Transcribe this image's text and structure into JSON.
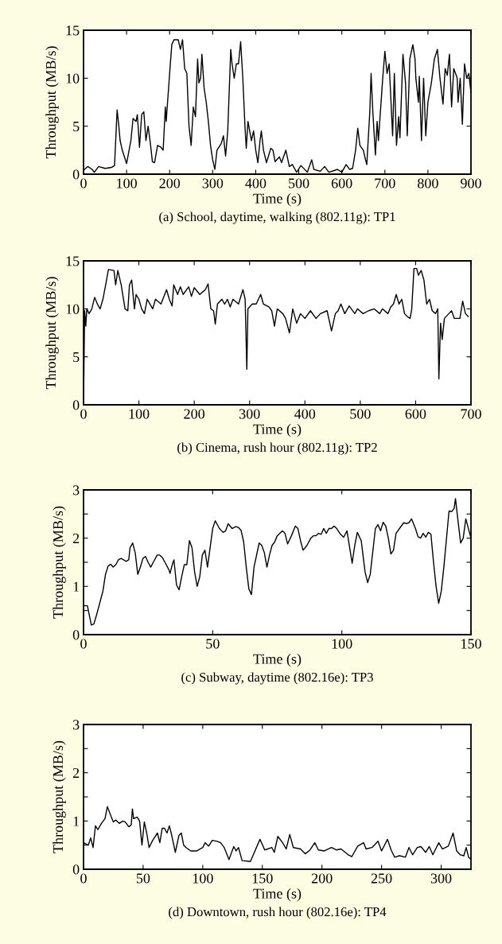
{
  "chart_data": [
    {
      "type": "line",
      "title": "(a) School, daytime, walking (802.11g): TP1",
      "xlabel": "Time (s)",
      "ylabel": "Throughput (MB/s)",
      "xlim": [
        0,
        900
      ],
      "ylim": [
        0,
        15
      ],
      "xticks": [
        0,
        100,
        200,
        300,
        400,
        500,
        600,
        700,
        800,
        900
      ],
      "yticks": [
        0,
        5,
        10,
        15
      ],
      "series": [
        {
          "color": "#000000",
          "x": [
            0,
            10,
            20,
            25,
            35,
            50,
            65,
            72,
            78,
            82,
            85,
            90,
            100,
            110,
            115,
            122,
            125,
            130,
            135,
            140,
            145,
            150,
            155,
            160,
            165,
            172,
            180,
            185,
            190,
            192,
            200,
            205,
            210,
            220,
            225,
            230,
            235,
            240,
            245,
            250,
            255,
            260,
            265,
            268,
            272,
            275,
            280,
            285,
            290,
            295,
            300,
            305,
            310,
            320,
            325,
            330,
            335,
            342,
            345,
            350,
            355,
            360,
            365,
            370,
            375,
            378,
            382,
            390,
            395,
            400,
            405,
            410,
            413,
            418,
            425,
            435,
            440,
            445,
            455,
            460,
            470,
            478,
            485,
            495,
            505,
            520,
            530,
            535,
            550,
            560,
            570,
            590,
            600,
            610,
            618,
            625,
            632,
            637,
            642,
            650,
            655,
            658,
            665,
            668,
            672,
            678,
            682,
            685,
            695,
            700,
            705,
            710,
            718,
            722,
            727,
            732,
            735,
            742,
            748,
            752,
            758,
            765,
            770,
            772,
            778,
            780,
            785,
            790,
            795,
            800,
            808,
            815,
            822,
            828,
            835,
            840,
            845,
            850,
            855,
            860,
            868,
            870,
            875,
            880,
            885,
            890,
            895,
            900
          ],
          "values": [
            0.4,
            0.8,
            0.5,
            0.2,
            0.8,
            0.6,
            0.7,
            0.9,
            6.7,
            5,
            3.5,
            2.5,
            1.1,
            3.5,
            5.8,
            5.5,
            6.2,
            2.8,
            6.2,
            6.5,
            3.5,
            5.0,
            3.3,
            1.3,
            1.2,
            3.0,
            2.8,
            2.5,
            7.0,
            5.5,
            10.5,
            13.5,
            14.0,
            14.0,
            13.0,
            14.0,
            11.0,
            10.5,
            5,
            3.0,
            7.0,
            6.0,
            12.0,
            9.5,
            10,
            12.5,
            9.0,
            7.5,
            5.5,
            3.0,
            1.5,
            0.5,
            2.5,
            3.2,
            4.0,
            1.9,
            4.5,
            13.0,
            11.5,
            10.0,
            11.5,
            11.5,
            13.8,
            10,
            5,
            2.7,
            5.5,
            3.5,
            4.5,
            2.5,
            1.2,
            3.5,
            4.5,
            2.5,
            1.2,
            2.7,
            2.5,
            1.3,
            1.8,
            1.2,
            2.5,
            0.8,
            1.0,
            0.2,
            0.9,
            0.2,
            1.5,
            0.5,
            0.3,
            0.8,
            0.2,
            0.5,
            0.2,
            1.0,
            0.5,
            0.6,
            2.5,
            4.8,
            3.0,
            2.5,
            1.5,
            1.0,
            6.5,
            10.5,
            6.5,
            2.0,
            5.5,
            3.5,
            10,
            12.8,
            10.5,
            11.5,
            4.0,
            10.5,
            3.0,
            6.0,
            3.8,
            12.5,
            9.5,
            4.0,
            12.0,
            13.5,
            12.0,
            10.0,
            7.5,
            10.2,
            3.5,
            10.0,
            4.0,
            7.5,
            9.5,
            12.0,
            13.0,
            10,
            7.3,
            11,
            10.3,
            12.5,
            7,
            11,
            10,
            7.5,
            10,
            5.2,
            11.5,
            10,
            10.5,
            8.5
          ]
        }
      ]
    },
    {
      "type": "line",
      "title": "(b) Cinema, rush hour (802.11g): TP2",
      "xlabel": "Time (s)",
      "ylabel": "Throughput (MB/s)",
      "xlim": [
        0,
        700
      ],
      "ylim": [
        0,
        15
      ],
      "xticks": [
        0,
        100,
        200,
        300,
        400,
        500,
        600,
        700
      ],
      "yticks": [
        0,
        5,
        10,
        15
      ],
      "series": [
        {
          "color": "#000000",
          "x": [
            0,
            2,
            4,
            6,
            10,
            15,
            20,
            25,
            30,
            35,
            40,
            45,
            55,
            58,
            62,
            68,
            75,
            80,
            83,
            87,
            92,
            95,
            100,
            105,
            110,
            115,
            125,
            130,
            140,
            150,
            155,
            160,
            163,
            170,
            175,
            180,
            190,
            195,
            200,
            210,
            220,
            225,
            230,
            235,
            238,
            242,
            250,
            255,
            260,
            265,
            270,
            280,
            288,
            292,
            295,
            297,
            305,
            312,
            320,
            325,
            335,
            340,
            345,
            350,
            360,
            365,
            372,
            378,
            385,
            392,
            400,
            410,
            420,
            428,
            440,
            445,
            448,
            455,
            460,
            465,
            472,
            480,
            490,
            495,
            505,
            515,
            525,
            535,
            540,
            550,
            555,
            560,
            565,
            570,
            575,
            580,
            585,
            590,
            593,
            597,
            602,
            605,
            610,
            615,
            620,
            625,
            630,
            636,
            640,
            642,
            645,
            648,
            652,
            660,
            665,
            670,
            680,
            685,
            690,
            695
          ],
          "values": [
            0,
            9.8,
            8.2,
            10,
            9.5,
            10,
            11.2,
            10.5,
            10,
            11,
            12.5,
            14.1,
            14,
            12.5,
            14,
            12.5,
            10,
            9.8,
            12.5,
            13,
            10,
            11.5,
            11,
            10,
            9.5,
            11,
            10,
            11,
            10.5,
            12,
            11,
            10.3,
            12.5,
            11.5,
            12.3,
            11.5,
            12.3,
            11.3,
            12.2,
            11.5,
            12,
            12.6,
            10,
            9.8,
            8.4,
            10.5,
            11,
            10.5,
            11,
            10.2,
            11,
            10.5,
            12,
            11,
            3.7,
            10,
            10.5,
            10.5,
            11.5,
            10.5,
            10.2,
            9.8,
            8.2,
            10,
            9.5,
            9,
            7.5,
            10,
            8.5,
            9.5,
            9,
            9.8,
            9,
            9.5,
            9.8,
            8.5,
            7.7,
            9.5,
            9.8,
            10.5,
            9.5,
            10.3,
            9.5,
            10,
            9.5,
            9.8,
            10,
            9.5,
            10,
            9.5,
            10.2,
            10.5,
            11.5,
            10.5,
            11,
            9.5,
            9.2,
            9,
            10,
            14.2,
            14.2,
            13.5,
            14.0,
            13,
            10.5,
            11,
            9.8,
            9.5,
            10,
            2.7,
            8.5,
            6.8,
            9,
            9.5,
            9.8,
            9,
            9.0,
            10.8,
            9.5,
            9.2
          ]
        }
      ]
    },
    {
      "type": "line",
      "title": "(c) Subway, daytime (802.16e): TP3",
      "xlabel": "Time (s)",
      "ylabel": "Throughput (MB/s)",
      "xlim": [
        0,
        150
      ],
      "ylim": [
        0,
        3
      ],
      "xticks": [
        0,
        50,
        100,
        150
      ],
      "yticks": [
        0,
        {
          "value": 0.5,
          "label": null
        },
        1,
        {
          "value": 1.5,
          "label": null
        },
        2,
        {
          "value": 2.5,
          "label": null
        },
        3
      ],
      "series": [
        {
          "color": "#000000",
          "x": [
            0,
            1.5,
            3,
            4,
            5,
            6.5,
            7.5,
            8.5,
            9.5,
            10.5,
            11.5,
            12.5,
            13.5,
            14.5,
            15.5,
            16.5,
            17.5,
            18,
            19,
            20,
            21,
            22,
            23,
            24,
            25,
            26,
            27.5,
            28.5,
            29.5,
            30.5,
            32,
            33,
            33.5,
            34.5,
            35,
            36,
            37,
            38,
            39,
            40,
            41,
            42,
            43,
            44,
            45,
            46,
            47,
            48,
            49,
            50,
            51,
            52.6,
            54,
            55,
            56,
            57.5,
            59,
            60,
            61,
            62,
            63,
            64,
            65,
            66,
            68,
            69,
            70,
            71,
            72,
            73,
            74,
            75,
            77,
            78,
            79,
            80.5,
            82,
            83,
            84,
            85,
            86.5,
            88,
            89,
            90,
            91,
            92,
            93,
            94,
            95,
            96,
            97,
            98,
            99.5,
            100.7,
            102,
            104,
            105,
            106,
            107.5,
            109,
            110,
            111,
            113,
            114,
            115,
            116,
            117,
            118,
            119,
            120,
            121,
            123,
            124,
            125,
            126,
            127,
            128.5,
            129.5,
            130.5,
            131.5,
            132.5,
            133.5,
            134.5,
            135.5,
            136.5,
            137.5,
            138.5,
            139.5,
            141.5,
            142.5,
            143.5,
            144,
            145,
            146,
            147,
            148,
            150
          ],
          "values": [
            0.6,
            0.6,
            0.2,
            0.22,
            0.4,
            0.7,
            0.9,
            1.25,
            1.42,
            1.46,
            1.4,
            1.45,
            1.55,
            1.58,
            1.55,
            1.52,
            1.55,
            1.8,
            1.9,
            1.7,
            1.25,
            1.4,
            1.58,
            1.62,
            1.5,
            1.4,
            1.55,
            1.65,
            1.65,
            1.6,
            1.45,
            1.35,
            1.27,
            1.48,
            1.55,
            1.03,
            0.93,
            1.2,
            1.45,
            1.45,
            1.95,
            1.8,
            1.3,
            1.0,
            1.2,
            1.65,
            1.75,
            1.4,
            1.8,
            2.2,
            2.36,
            2.2,
            2.12,
            2.15,
            2.3,
            2.2,
            2.24,
            2.22,
            2.16,
            1.92,
            1.4,
            0.95,
            0.83,
            1.4,
            1.9,
            1.85,
            1.7,
            1.4,
            1.65,
            1.85,
            1.92,
            2.05,
            2.15,
            2.1,
            1.88,
            2.05,
            2.25,
            2.2,
            1.95,
            1.75,
            1.85,
            2.0,
            2.05,
            2.05,
            2.1,
            2.08,
            2.2,
            2.1,
            2.2,
            2.2,
            2.25,
            2.2,
            2.08,
            2.02,
            2.15,
            1.48,
            1.85,
            2.12,
            1.95,
            1.3,
            1.08,
            1.25,
            2.2,
            2.28,
            2.15,
            2.33,
            2.25,
            2.0,
            1.67,
            1.75,
            2.1,
            2.25,
            2.32,
            2.3,
            2.32,
            2.4,
            2.2,
            2.03,
            2.0,
            2.1,
            2.02,
            2.12,
            2.08,
            1.5,
            1.0,
            0.65,
            0.9,
            1.4,
            2.56,
            2.55,
            2.62,
            2.82,
            2.35,
            1.9,
            2.0,
            2.4,
            2.0
          ]
        }
      ]
    },
    {
      "type": "line",
      "title": "(d) Downtown, rush hour (802.16e): TP4",
      "xlabel": "Time (s)",
      "ylabel": "Throughput (MB/s)",
      "xlim": [
        0,
        325
      ],
      "ylim": [
        0,
        3
      ],
      "xticks": [
        0,
        50,
        100,
        150,
        200,
        250,
        300
      ],
      "yticks": [
        0,
        {
          "value": 0.5,
          "label": null
        },
        1,
        {
          "value": 1.5,
          "label": null
        },
        2,
        {
          "value": 2.5,
          "label": null
        },
        3
      ],
      "series": [
        {
          "color": "#000000",
          "x": [
            0,
            4,
            6,
            8,
            10,
            12,
            15,
            18,
            20,
            23,
            25,
            27,
            30,
            33,
            35,
            38,
            40,
            41,
            42,
            45,
            47,
            49,
            51,
            53,
            55,
            58,
            62,
            64,
            66,
            68,
            70,
            72,
            74,
            77,
            80,
            82,
            84,
            86,
            90,
            95,
            100,
            102,
            105,
            108,
            112,
            115,
            118,
            122,
            126,
            128,
            130,
            133,
            140,
            148,
            152,
            158,
            160,
            163,
            167,
            170,
            173,
            176,
            182,
            186,
            190,
            194,
            197,
            202,
            208,
            212,
            216,
            222,
            225,
            230,
            235,
            237,
            242,
            247,
            250,
            255,
            258,
            261,
            265,
            270,
            273,
            276,
            280,
            283,
            287,
            290,
            293,
            298,
            301,
            306,
            310,
            313,
            316,
            319,
            321,
            323,
            325
          ],
          "values": [
            0.55,
            0.5,
            0.65,
            0.45,
            0.9,
            0.82,
            0.95,
            1.05,
            1.3,
            1.1,
            0.98,
            1.02,
            0.95,
            1.0,
            0.98,
            0.88,
            0.92,
            1.25,
            1.05,
            1.08,
            1.0,
            0.5,
            0.98,
            0.75,
            0.45,
            0.6,
            0.75,
            0.55,
            0.85,
            0.85,
            0.75,
            0.9,
            0.7,
            0.35,
            0.7,
            0.75,
            0.5,
            0.45,
            0.38,
            0.38,
            0.45,
            0.55,
            0.48,
            0.6,
            0.58,
            0.55,
            0.45,
            0.2,
            0.47,
            0.38,
            0.45,
            0.18,
            0.16,
            0.62,
            0.4,
            0.45,
            0.35,
            0.68,
            0.55,
            0.42,
            0.72,
            0.45,
            0.42,
            0.32,
            0.4,
            0.55,
            0.4,
            0.38,
            0.45,
            0.4,
            0.42,
            0.3,
            0.26,
            0.48,
            0.55,
            0.42,
            0.45,
            0.58,
            0.38,
            0.62,
            0.4,
            0.25,
            0.28,
            0.25,
            0.45,
            0.3,
            0.45,
            0.47,
            0.35,
            0.47,
            0.3,
            0.55,
            0.42,
            0.48,
            0.75,
            0.38,
            0.3,
            0.28,
            0.45,
            0.25,
            0.2
          ]
        }
      ]
    }
  ]
}
